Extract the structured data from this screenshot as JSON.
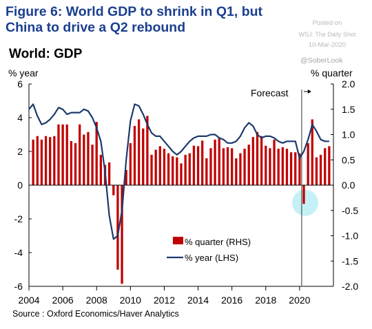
{
  "header": {
    "title": "Figure 6: World GDP to shrink in Q1, but China to drive a Q2 rebound",
    "posted_on": "Posted on",
    "posted_by": "WSJ: The Daily Shot",
    "posted_date": "10-Mar-2020",
    "handle": "@SoberLook"
  },
  "chart_data": {
    "type": "bar+line",
    "title": "World: GDP",
    "left_axis_label": "% year",
    "right_axis_label": "% quarter",
    "left_ylim": [
      -6,
      6
    ],
    "right_ylim": [
      -2.0,
      2.0
    ],
    "left_ticks": [
      "6",
      "4",
      "2",
      "0",
      "-2",
      "-4",
      "-6"
    ],
    "right_ticks": [
      "2.0",
      "1.5",
      "1.0",
      "0.5",
      "0.0",
      "-0.5",
      "-1.0",
      "-1.5",
      "-2.0"
    ],
    "x_tick_labels": [
      "2004",
      "2006",
      "2008",
      "2010",
      "2012",
      "2014",
      "2016",
      "2018",
      "2020"
    ],
    "x_range": [
      2004.0,
      2022.0
    ],
    "annotation": "Forecast",
    "forecast_start": 2020.0,
    "highlight_color": "#bfeef5",
    "legend_position": "bottom-center",
    "source": "Source : Oxford Economics/Haver Analytics",
    "series": [
      {
        "name": "% quarter (RHS)",
        "kind": "bar",
        "axis": "right",
        "color": "#c00000",
        "x": [
          2004.25,
          2004.5,
          2004.75,
          2005.0,
          2005.25,
          2005.5,
          2005.75,
          2006.0,
          2006.25,
          2006.5,
          2006.75,
          2007.0,
          2007.25,
          2007.5,
          2007.75,
          2008.0,
          2008.25,
          2008.5,
          2008.75,
          2009.0,
          2009.25,
          2009.5,
          2009.75,
          2010.0,
          2010.25,
          2010.5,
          2010.75,
          2011.0,
          2011.25,
          2011.5,
          2011.75,
          2012.0,
          2012.25,
          2012.5,
          2012.75,
          2013.0,
          2013.25,
          2013.5,
          2013.75,
          2014.0,
          2014.25,
          2014.5,
          2014.75,
          2015.0,
          2015.25,
          2015.5,
          2015.75,
          2016.0,
          2016.25,
          2016.5,
          2016.75,
          2017.0,
          2017.25,
          2017.5,
          2017.75,
          2018.0,
          2018.25,
          2018.5,
          2018.75,
          2019.0,
          2019.25,
          2019.5,
          2019.75,
          2020.0,
          2020.25,
          2020.5,
          2020.75,
          2021.0,
          2021.25,
          2021.5,
          2021.75
        ],
        "values": [
          0.9,
          0.97,
          0.9,
          0.97,
          0.95,
          0.97,
          1.2,
          1.2,
          1.2,
          0.87,
          0.83,
          1.2,
          1.0,
          1.05,
          0.8,
          1.25,
          0.6,
          0.4,
          0.45,
          -0.2,
          -1.67,
          -1.95,
          0.3,
          0.83,
          1.17,
          1.3,
          1.12,
          1.37,
          0.6,
          0.7,
          0.77,
          0.72,
          0.63,
          0.57,
          0.55,
          0.43,
          0.6,
          0.63,
          0.78,
          0.77,
          0.88,
          0.53,
          0.73,
          0.9,
          0.93,
          0.73,
          0.75,
          0.73,
          0.53,
          0.63,
          0.72,
          0.8,
          0.95,
          1.05,
          0.97,
          0.78,
          0.73,
          0.9,
          0.72,
          0.75,
          0.72,
          0.65,
          0.65,
          0.63,
          -0.37,
          0.83,
          1.3,
          0.55,
          0.6,
          0.73,
          0.77
        ]
      },
      {
        "name": "% year (LHS)",
        "kind": "line",
        "axis": "left",
        "color": "#1b3a6b",
        "x": [
          2004.0,
          2004.25,
          2004.5,
          2004.75,
          2005.0,
          2005.25,
          2005.5,
          2005.75,
          2006.0,
          2006.25,
          2006.5,
          2006.75,
          2007.0,
          2007.25,
          2007.5,
          2007.75,
          2008.0,
          2008.25,
          2008.5,
          2008.75,
          2009.0,
          2009.25,
          2009.5,
          2009.75,
          2010.0,
          2010.25,
          2010.5,
          2010.75,
          2011.0,
          2011.25,
          2011.5,
          2011.75,
          2012.0,
          2012.25,
          2012.5,
          2012.75,
          2013.0,
          2013.25,
          2013.5,
          2013.75,
          2014.0,
          2014.25,
          2014.5,
          2014.75,
          2015.0,
          2015.25,
          2015.5,
          2015.75,
          2016.0,
          2016.25,
          2016.5,
          2016.75,
          2017.0,
          2017.25,
          2017.5,
          2017.75,
          2018.0,
          2018.25,
          2018.5,
          2018.75,
          2019.0,
          2019.25,
          2019.5,
          2019.75,
          2020.0,
          2020.25,
          2020.5,
          2020.75,
          2021.0,
          2021.25,
          2021.5,
          2021.75
        ],
        "values": [
          4.5,
          4.8,
          4.1,
          3.6,
          3.7,
          3.9,
          4.2,
          4.6,
          4.5,
          4.2,
          4.3,
          4.3,
          4.3,
          4.5,
          4.4,
          4.0,
          3.4,
          2.6,
          0.8,
          -1.8,
          -3.2,
          -3.0,
          -1.5,
          1.5,
          3.8,
          4.8,
          4.7,
          4.2,
          3.6,
          3.1,
          2.9,
          2.9,
          2.6,
          2.3,
          2.0,
          1.8,
          2.0,
          2.3,
          2.6,
          2.8,
          2.9,
          2.9,
          2.9,
          3.0,
          3.0,
          2.8,
          2.7,
          2.5,
          2.5,
          2.6,
          2.9,
          3.4,
          3.7,
          3.5,
          3.0,
          2.8,
          2.9,
          2.9,
          2.8,
          2.6,
          2.5,
          2.6,
          2.6,
          2.6,
          1.6,
          2.0,
          2.7,
          3.6,
          3.2,
          2.7,
          2.6,
          2.6
        ]
      }
    ]
  }
}
